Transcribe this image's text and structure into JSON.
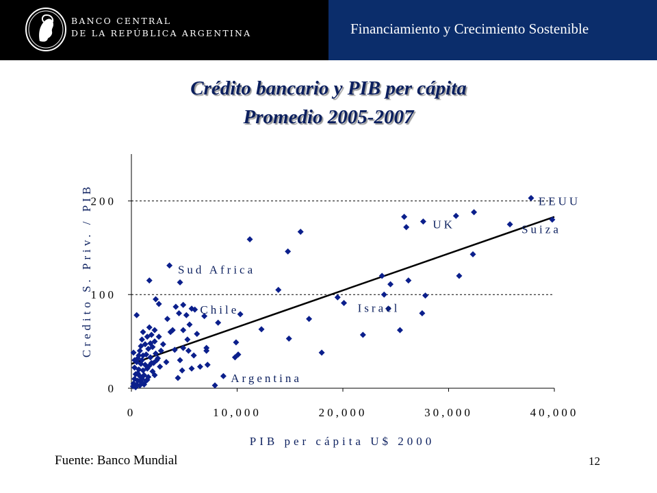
{
  "header": {
    "bank_line1": "BANCO CENTRAL",
    "bank_line2": "DE LA REPÚBLICA ARGENTINA",
    "section_title": "Financiamiento y Crecimiento Sostenible",
    "left_color": "#000000",
    "right_color": "#0b2d6b"
  },
  "slide": {
    "title_line1": "Crédito bancario y PIB per cápita",
    "title_line2": "Promedio 2005-2007",
    "source": "Fuente: Banco Mundial",
    "page_number": "12"
  },
  "chart_data": {
    "type": "scatter",
    "xlabel": "PIB per cápita U$ 2000",
    "ylabel": "Credito S. Priv. / PIB",
    "xlim": [
      0,
      40000
    ],
    "ylim": [
      0,
      250
    ],
    "xticks": [
      "0",
      "10,000",
      "20,000",
      "30,000",
      "40,000"
    ],
    "yticks": [
      "0",
      "100",
      "200"
    ],
    "gridlines_y": [
      100,
      200
    ],
    "marker_color": "#0b1f8c",
    "trendline": {
      "x": [
        0,
        40000
      ],
      "y": [
        26,
        183
      ]
    },
    "annotations": [
      {
        "label": "EEUU",
        "x": 38500,
        "y": 200
      },
      {
        "label": "UK",
        "x": 28500,
        "y": 175
      },
      {
        "label": "Suiza",
        "x": 36900,
        "y": 170
      },
      {
        "label": "Sud Africa",
        "x": 4400,
        "y": 127
      },
      {
        "label": "Chile",
        "x": 6500,
        "y": 84
      },
      {
        "label": "Israel",
        "x": 21400,
        "y": 86
      },
      {
        "label": "Argentina",
        "x": 9400,
        "y": 11
      }
    ],
    "points": [
      [
        37800,
        203
      ],
      [
        39800,
        180
      ],
      [
        35800,
        175
      ],
      [
        32400,
        188
      ],
      [
        30700,
        184
      ],
      [
        27600,
        178
      ],
      [
        25800,
        183
      ],
      [
        26000,
        172
      ],
      [
        32300,
        143
      ],
      [
        31000,
        120
      ],
      [
        26200,
        115
      ],
      [
        23700,
        120
      ],
      [
        24500,
        111
      ],
      [
        23900,
        100
      ],
      [
        24300,
        85
      ],
      [
        27800,
        99
      ],
      [
        27500,
        80
      ],
      [
        25400,
        62
      ],
      [
        21900,
        57
      ],
      [
        19500,
        97
      ],
      [
        20100,
        91
      ],
      [
        16800,
        74
      ],
      [
        14900,
        53
      ],
      [
        18000,
        38
      ],
      [
        16000,
        167
      ],
      [
        14800,
        146
      ],
      [
        13900,
        105
      ],
      [
        11200,
        159
      ],
      [
        12300,
        63
      ],
      [
        10300,
        79
      ],
      [
        9900,
        49
      ],
      [
        9800,
        33
      ],
      [
        10100,
        36
      ],
      [
        8200,
        70
      ],
      [
        8700,
        13
      ],
      [
        7900,
        3
      ],
      [
        3600,
        131
      ],
      [
        1700,
        115
      ],
      [
        4600,
        113
      ],
      [
        2300,
        95
      ],
      [
        2600,
        90
      ],
      [
        4200,
        87
      ],
      [
        4900,
        89
      ],
      [
        5700,
        85
      ],
      [
        6000,
        84
      ],
      [
        3400,
        74
      ],
      [
        5200,
        78
      ],
      [
        6900,
        77
      ],
      [
        4500,
        80
      ],
      [
        5500,
        68
      ],
      [
        3700,
        60
      ],
      [
        3900,
        62
      ],
      [
        4900,
        62
      ],
      [
        5300,
        52
      ],
      [
        6200,
        58
      ],
      [
        2200,
        62
      ],
      [
        1700,
        65
      ],
      [
        1100,
        60
      ],
      [
        1500,
        55
      ],
      [
        1900,
        57
      ],
      [
        3000,
        47
      ],
      [
        4100,
        41
      ],
      [
        4900,
        43
      ],
      [
        5400,
        40
      ],
      [
        7100,
        43
      ],
      [
        7100,
        40
      ],
      [
        5900,
        35
      ],
      [
        4600,
        30
      ],
      [
        3300,
        28
      ],
      [
        6500,
        23
      ],
      [
        7200,
        25
      ],
      [
        5700,
        21
      ],
      [
        4800,
        19
      ],
      [
        4400,
        11
      ],
      [
        2500,
        32
      ],
      [
        2200,
        14
      ],
      [
        1200,
        4
      ],
      [
        500,
        78
      ],
      [
        900,
        45
      ],
      [
        1300,
        47
      ],
      [
        800,
        40
      ],
      [
        1600,
        42
      ],
      [
        2200,
        50
      ],
      [
        700,
        35
      ],
      [
        1100,
        35
      ],
      [
        1800,
        33
      ],
      [
        2400,
        30
      ],
      [
        500,
        28
      ],
      [
        900,
        26
      ],
      [
        1300,
        25
      ],
      [
        1900,
        27
      ],
      [
        300,
        22
      ],
      [
        700,
        20
      ],
      [
        1100,
        19
      ],
      [
        1500,
        21
      ],
      [
        2000,
        18
      ],
      [
        400,
        15
      ],
      [
        800,
        13
      ],
      [
        1200,
        14
      ],
      [
        1600,
        12
      ],
      [
        300,
        10
      ],
      [
        600,
        8
      ],
      [
        900,
        7
      ],
      [
        200,
        5
      ],
      [
        500,
        4
      ],
      [
        800,
        3
      ],
      [
        150,
        2
      ],
      [
        400,
        1
      ],
      [
        1000,
        10
      ],
      [
        1400,
        8
      ],
      [
        600,
        32
      ],
      [
        1000,
        30
      ],
      [
        1400,
        36
      ],
      [
        200,
        38
      ],
      [
        1700,
        24
      ],
      [
        2700,
        23
      ],
      [
        2300,
        37
      ],
      [
        300,
        30
      ],
      [
        1000,
        52
      ],
      [
        1800,
        48
      ],
      [
        2600,
        55
      ],
      [
        2000,
        44
      ],
      [
        2800,
        40
      ],
      [
        1500,
        9
      ],
      [
        2100,
        27
      ],
      [
        600,
        16
      ]
    ]
  }
}
